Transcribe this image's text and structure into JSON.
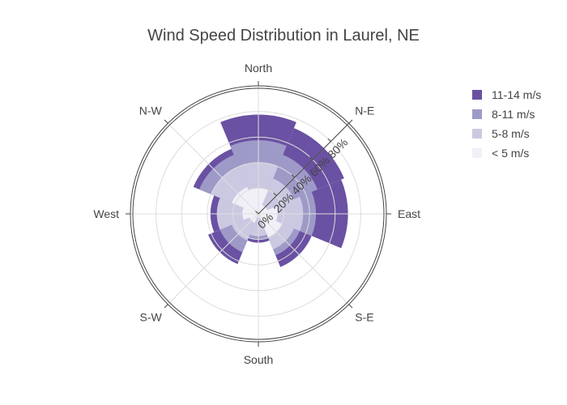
{
  "chart_data": {
    "type": "barpolar",
    "title": "Wind Speed Distribution in Laurel, NE",
    "directions": [
      "North",
      "N-E",
      "East",
      "S-E",
      "South",
      "S-W",
      "West",
      "N-W"
    ],
    "radial_ticks": [
      "0%",
      "20%",
      "40%",
      "60%",
      "80%"
    ],
    "radial_range": [
      0,
      100
    ],
    "radial_axis_angle_deg": 45,
    "grid": true,
    "legend_position": "right",
    "series": [
      {
        "name": "11-14 m/s",
        "color": "#6a51a3",
        "values": [
          77.5,
          72.5,
          70.0,
          45.0,
          22.5,
          42.5,
          37.5,
          55.0
        ]
      },
      {
        "name": "8-11 m/s",
        "color": "#9e9ac8",
        "values": [
          57.5,
          50.0,
          45.0,
          35.0,
          20.0,
          32.5,
          30.0,
          50.0
        ]
      },
      {
        "name": "5-8 m/s",
        "color": "#cbc9e2",
        "values": [
          40.0,
          30.0,
          35.0,
          30.0,
          17.5,
          22.5,
          32.5,
          40.0
        ]
      },
      {
        "name": "< 5 m/s",
        "color": "#f2f0f7",
        "values": [
          20.0,
          7.5,
          15.0,
          20.0,
          2.5,
          7.5,
          12.5,
          22.5
        ]
      }
    ]
  }
}
